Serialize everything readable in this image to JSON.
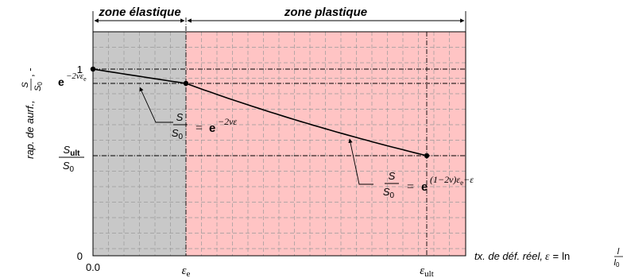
{
  "zones": {
    "elastic_label": "zone élastique",
    "plastic_label": "zone plastique",
    "elastic_fill": "#c8c8c8",
    "plastic_fill": "#ffc4c4"
  },
  "x_axis": {
    "label": "tx. de déf. réel,",
    "eps_symbol": "ε",
    "eq": "=",
    "ln": "ln",
    "frac_num": "l",
    "frac_den": "l",
    "frac_den_sub": "0",
    "tick_origin": "0.0",
    "tick_e_base": "ε",
    "tick_e_sub": "e",
    "tick_ult_base": "ε",
    "tick_ult_sub": "ult"
  },
  "y_axis": {
    "label": "rap. de aurf.,",
    "frac_num": "S",
    "frac_den": "S",
    "frac_den_sub": "0",
    "suffix": ", -",
    "tick_zero": "0",
    "tick_one": "1",
    "tick_e_base": "e",
    "tick_e_exp": "−2νε",
    "tick_e_exp_sub": "e",
    "tick_ult_num": "S",
    "tick_ult_num_sub": "ult",
    "tick_ult_den": "S",
    "tick_ult_den_sub": "0"
  },
  "annotations": {
    "elastic": {
      "frac_num": "S",
      "frac_den": "S",
      "frac_den_sub": "0",
      "eq": "=",
      "base": "e",
      "exp": "−2νε"
    },
    "plastic": {
      "frac_num": "S",
      "frac_den": "S",
      "frac_den_sub": "0",
      "eq": "=",
      "base": "e",
      "exp": "(1−2ν)ε",
      "exp_sub": "e",
      "exp_tail": "−ε"
    }
  },
  "curve": {
    "nu": 0.3,
    "eps_e": 0.1,
    "eps_ult": 0.5,
    "x_max": 0.58
  }
}
